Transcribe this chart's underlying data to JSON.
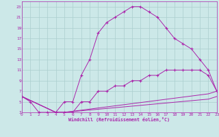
{
  "xlabel": "Windchill (Refroidissement éolien,°C)",
  "background_color": "#cce8e8",
  "grid_color": "#aacece",
  "line_color": "#aa22aa",
  "xlim": [
    0,
    23
  ],
  "ylim": [
    3,
    24
  ],
  "xticks": [
    0,
    1,
    2,
    3,
    4,
    5,
    6,
    7,
    8,
    9,
    10,
    11,
    12,
    13,
    14,
    15,
    16,
    17,
    18,
    19,
    20,
    21,
    22,
    23
  ],
  "yticks": [
    3,
    5,
    7,
    9,
    11,
    13,
    15,
    17,
    19,
    21,
    23
  ],
  "line1_x": [
    0,
    1,
    2,
    3,
    4,
    5,
    6,
    7,
    8,
    9,
    10,
    11,
    12,
    13,
    14,
    15,
    16,
    17,
    18,
    19,
    20,
    21,
    22,
    23
  ],
  "line1_y": [
    6,
    5,
    3,
    3,
    3,
    5,
    5,
    10,
    13,
    18,
    20,
    21,
    22,
    23,
    23,
    22,
    21,
    19,
    17,
    16,
    15,
    13,
    11,
    7
  ],
  "line2_x": [
    0,
    4,
    5,
    6,
    7,
    8,
    9,
    10,
    11,
    12,
    13,
    14,
    15,
    16,
    17,
    18,
    19,
    20,
    21,
    22,
    23
  ],
  "line2_y": [
    6,
    3,
    3,
    3,
    5,
    5,
    7,
    7,
    8,
    8,
    9,
    9,
    10,
    10,
    11,
    11,
    11,
    11,
    11,
    10,
    7
  ],
  "line3_x": [
    0,
    4,
    5,
    22,
    23
  ],
  "line3_y": [
    6,
    3,
    3,
    6.5,
    7
  ],
  "line4_x": [
    0,
    4,
    5,
    22,
    23
  ],
  "line4_y": [
    6,
    3,
    3,
    5.5,
    6
  ]
}
